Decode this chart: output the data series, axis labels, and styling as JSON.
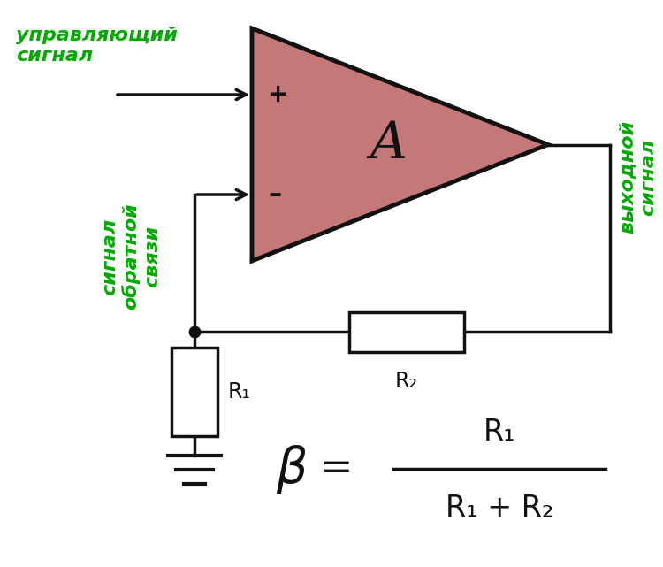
{
  "bg_color": "#ffffff",
  "triangle_fill": "#c47878",
  "triangle_edge": "#111111",
  "line_color": "#111111",
  "green_color": "#00aa00",
  "text_color": "#111111",
  "figsize": [
    7.5,
    6.41
  ],
  "dpi": 100,
  "labels": {
    "upravlyayuschiy": "управляющий\nсигнал",
    "signal_os": "сигнал\nобратной\nсвязи",
    "vykhodnoy": "выходной\nсигнал",
    "A_label": "A",
    "plus": "+",
    "minus": "–",
    "R1_label": "R₁",
    "R2_label": "R₂"
  }
}
